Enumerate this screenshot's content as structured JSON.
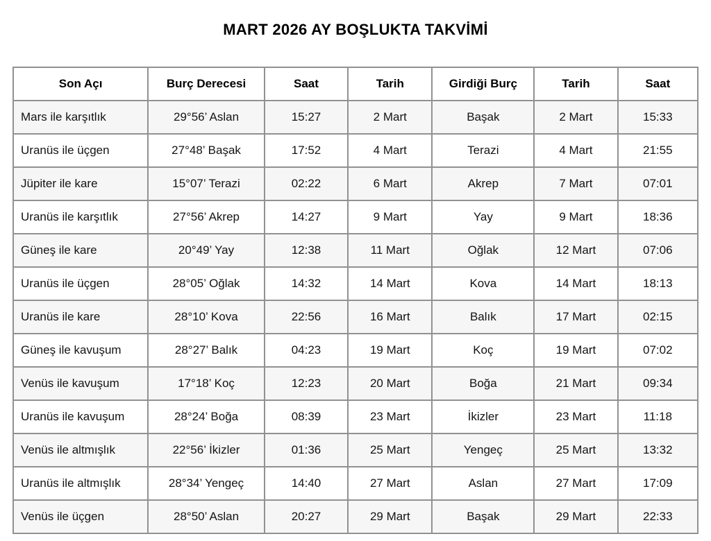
{
  "page": {
    "title": "MART 2026 AY BOŞLUKTA TAKVİMİ"
  },
  "colors": {
    "border": "#919191",
    "stripe": "#f6f6f6",
    "text": "#141414",
    "background": "#ffffff"
  },
  "table": {
    "columns": [
      "Son Açı",
      "Burç Derecesi",
      "Saat",
      "Tarih",
      "Girdiği Burç",
      "Tarih",
      "Saat"
    ],
    "rows": [
      [
        "Mars ile karşıtlık",
        "29°56’ Aslan",
        "15:27",
        "2 Mart",
        "Başak",
        "2 Mart",
        "15:33"
      ],
      [
        "Uranüs ile üçgen",
        "27°48’ Başak",
        "17:52",
        "4 Mart",
        "Terazi",
        "4 Mart",
        "21:55"
      ],
      [
        "Jüpiter ile kare",
        "15°07’ Terazi",
        "02:22",
        "6 Mart",
        "Akrep",
        "7 Mart",
        "07:01"
      ],
      [
        "Uranüs ile karşıtlık",
        "27°56’ Akrep",
        "14:27",
        "9 Mart",
        "Yay",
        "9 Mart",
        "18:36"
      ],
      [
        "Güneş ile kare",
        "20°49’ Yay",
        "12:38",
        "11 Mart",
        "Oğlak",
        "12 Mart",
        "07:06"
      ],
      [
        "Uranüs ile üçgen",
        "28°05’ Oğlak",
        "14:32",
        "14 Mart",
        "Kova",
        "14 Mart",
        "18:13"
      ],
      [
        "Uranüs ile kare",
        "28°10’ Kova",
        "22:56",
        "16 Mart",
        "Balık",
        "17 Mart",
        "02:15"
      ],
      [
        "Güneş ile kavuşum",
        "28°27’ Balık",
        "04:23",
        "19 Mart",
        "Koç",
        "19 Mart",
        "07:02"
      ],
      [
        "Venüs ile kavuşum",
        "17°18’ Koç",
        "12:23",
        "20 Mart",
        "Boğa",
        "21 Mart",
        "09:34"
      ],
      [
        "Uranüs ile kavuşum",
        "28°24’ Boğa",
        "08:39",
        "23 Mart",
        "İkizler",
        "23 Mart",
        "11:18"
      ],
      [
        "Venüs ile altmışlık",
        "22°56’ İkizler",
        "01:36",
        "25 Mart",
        "Yengeç",
        "25 Mart",
        "13:32"
      ],
      [
        "Uranüs ile altmışlık",
        "28°34’ Yengeç",
        "14:40",
        "27 Mart",
        "Aslan",
        "27 Mart",
        "17:09"
      ],
      [
        "Venüs ile üçgen",
        "28°50’ Aslan",
        "20:27",
        "29 Mart",
        "Başak",
        "29 Mart",
        "22:33"
      ]
    ],
    "column_widths_pct": [
      19.7,
      17.0,
      12.2,
      12.3,
      14.9,
      12.2,
      11.7
    ]
  }
}
